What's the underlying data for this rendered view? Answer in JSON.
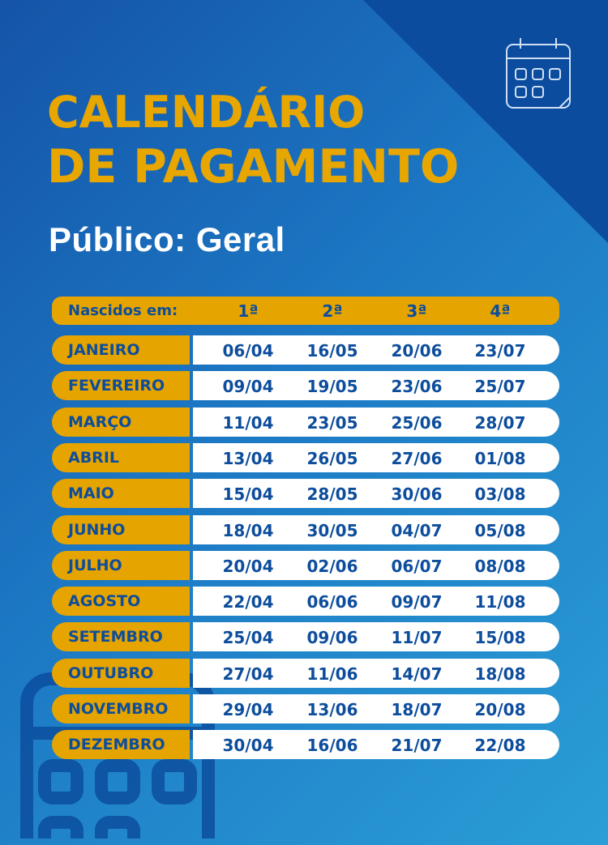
{
  "title_line1": "CALENDÁRIO",
  "title_line2": "DE PAGAMENTO",
  "subtitle": "Público: Geral",
  "colors": {
    "accent": "#e5a400",
    "text_dark": "#0d4d9c",
    "bg": "#1c78c4"
  },
  "icons": [
    "calendar-icon",
    "calendar-watermark-icon"
  ],
  "table": {
    "header": {
      "label": "Nascidos em:",
      "cols": [
        "1ª",
        "2ª",
        "3ª",
        "4ª"
      ]
    },
    "rows": [
      {
        "month": "JANEIRO",
        "dates": [
          "06/04",
          "16/05",
          "20/06",
          "23/07"
        ]
      },
      {
        "month": "FEVEREIRO",
        "dates": [
          "09/04",
          "19/05",
          "23/06",
          "25/07"
        ]
      },
      {
        "month": "MARÇO",
        "dates": [
          "11/04",
          "23/05",
          "25/06",
          "28/07"
        ]
      },
      {
        "month": "ABRIL",
        "dates": [
          "13/04",
          "26/05",
          "27/06",
          "01/08"
        ]
      },
      {
        "month": "MAIO",
        "dates": [
          "15/04",
          "28/05",
          "30/06",
          "03/08"
        ]
      },
      {
        "month": "JUNHO",
        "dates": [
          "18/04",
          "30/05",
          "04/07",
          "05/08"
        ]
      },
      {
        "month": "JULHO",
        "dates": [
          "20/04",
          "02/06",
          "06/07",
          "08/08"
        ]
      },
      {
        "month": "AGOSTO",
        "dates": [
          "22/04",
          "06/06",
          "09/07",
          "11/08"
        ]
      },
      {
        "month": "SETEMBRO",
        "dates": [
          "25/04",
          "09/06",
          "11/07",
          "15/08"
        ]
      },
      {
        "month": "OUTUBRO",
        "dates": [
          "27/04",
          "11/06",
          "14/07",
          "18/08"
        ]
      },
      {
        "month": "NOVEMBRO",
        "dates": [
          "29/04",
          "13/06",
          "18/07",
          "20/08"
        ]
      },
      {
        "month": "DEZEMBRO",
        "dates": [
          "30/04",
          "16/06",
          "21/07",
          "22/08"
        ]
      }
    ]
  }
}
